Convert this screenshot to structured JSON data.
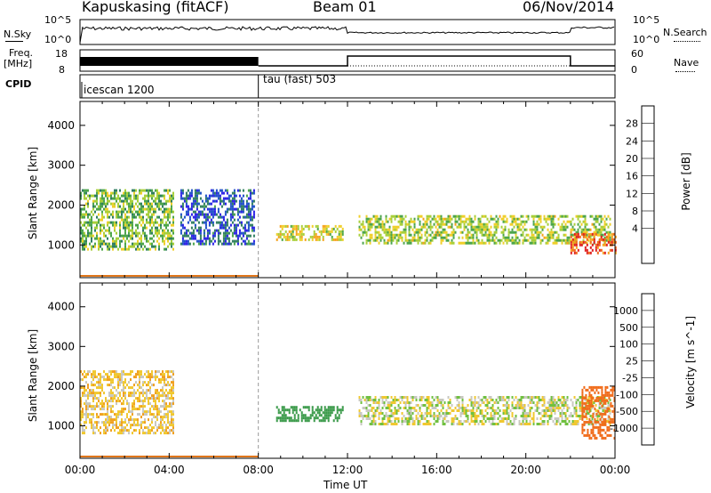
{
  "header": {
    "station": "Kapuskasing (fitACF)",
    "beam": "Beam 01",
    "date": "06/Nov/2014"
  },
  "strip_panels": {
    "nsky": {
      "label": "N.Sky",
      "ticks": [
        "10^5",
        "10^0"
      ]
    },
    "nsearch": {
      "label": "N.Search",
      "ticks": [
        "10^5",
        "10^0"
      ]
    },
    "freq": {
      "label_line1": "Freq.",
      "label_line2": "[MHz]",
      "ticks": [
        "18",
        "8"
      ]
    },
    "nave": {
      "label": "Nave",
      "ticks": [
        "60",
        "0"
      ]
    },
    "cpid": {
      "label": "CPID",
      "modes": [
        "icescan 1200",
        "tau (fast) 503"
      ]
    }
  },
  "power_panel": {
    "ylabel": "Slant Range [km]",
    "colorbar_label": "Power [dB]",
    "colorbar_ticks": [
      "28",
      "24",
      "20",
      "16",
      "12",
      "8",
      "4"
    ],
    "colors": [
      "#2a1fe6",
      "#1f50c8",
      "#2f7e5f",
      "#4ca54b",
      "#a8cf3a",
      "#f0cf2a",
      "#f5a21c",
      "#f06a18",
      "#e01e1e"
    ]
  },
  "velocity_panel": {
    "ylabel": "Slant Range [km]",
    "colorbar_label": "Velocity [m s^-1]",
    "colorbar_ticks": [
      "1000",
      "500",
      "100",
      "25",
      "-25",
      "-100",
      "-500",
      "-1000"
    ],
    "colors": [
      "#1f3fc8",
      "#2a6fa0",
      "#3a9a4a",
      "#70c040",
      "#c8c8c0",
      "#f0c830",
      "#f0a020",
      "#f06a18",
      "#e01e1e"
    ]
  },
  "chart_data": [
    {
      "type": "heatmap",
      "title": "Power",
      "ylabel": "Slant Range [km]",
      "xlabel": "",
      "x_ticks": [
        "00:00",
        "04:00",
        "08:00",
        "12:00",
        "16:00",
        "20:00",
        "00:00"
      ],
      "y_ticks": [
        1000,
        2000,
        3000,
        4000
      ],
      "ylim": [
        180,
        4600
      ],
      "colorbar": {
        "label": "Power [dB]",
        "ticks": [
          4,
          8,
          12,
          16,
          20,
          24,
          28
        ]
      },
      "echo_regions": [
        {
          "t_start_h": 0.0,
          "t_end_h": 4.2,
          "range_start_km": 900,
          "range_end_km": 2400,
          "power_db": 14
        },
        {
          "t_start_h": 4.5,
          "t_end_h": 7.8,
          "range_start_km": 1000,
          "range_end_km": 2400,
          "power_db": 6
        },
        {
          "t_start_h": 8.8,
          "t_end_h": 11.8,
          "range_start_km": 1100,
          "range_end_km": 1500,
          "power_db": 18
        },
        {
          "t_start_h": 12.5,
          "t_end_h": 23.8,
          "range_start_km": 1050,
          "range_end_km": 1750,
          "power_db": 16
        },
        {
          "t_start_h": 22.0,
          "t_end_h": 24.0,
          "range_start_km": 800,
          "range_end_km": 1300,
          "power_db": 26
        }
      ]
    },
    {
      "type": "heatmap",
      "title": "Velocity",
      "ylabel": "Slant Range [km]",
      "xlabel": "Time UT",
      "x_ticks": [
        "00:00",
        "04:00",
        "08:00",
        "12:00",
        "16:00",
        "20:00",
        "00:00"
      ],
      "y_ticks": [
        1000,
        2000,
        3000,
        4000
      ],
      "ylim": [
        180,
        4600
      ],
      "colorbar": {
        "label": "Velocity [m s^-1]",
        "ticks": [
          1000,
          500,
          100,
          25,
          -25,
          -100,
          -500,
          -1000
        ]
      },
      "echo_regions": [
        {
          "t_start_h": 0.0,
          "t_end_h": 4.2,
          "range_start_km": 800,
          "range_end_km": 2400,
          "velocity": -60
        },
        {
          "t_start_h": 8.8,
          "t_end_h": 11.8,
          "range_start_km": 1100,
          "range_end_km": 1500,
          "velocity": 200
        },
        {
          "t_start_h": 12.5,
          "t_end_h": 23.8,
          "range_start_km": 1050,
          "range_end_km": 1750,
          "velocity": 0
        },
        {
          "t_start_h": 22.5,
          "t_end_h": 24.0,
          "range_start_km": 700,
          "range_end_km": 2000,
          "velocity": -600
        }
      ]
    }
  ]
}
